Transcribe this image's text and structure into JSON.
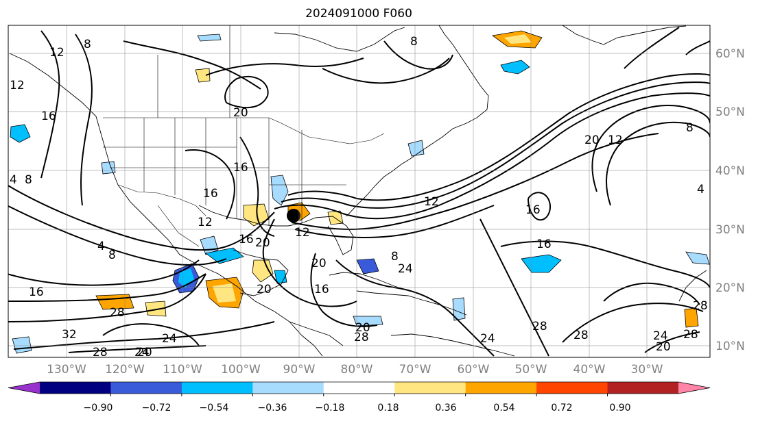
{
  "title": "2024091000 F060",
  "map": {
    "projection": "PlateCarree",
    "lon_range": [
      -142,
      -21
    ],
    "lat_range": [
      7,
      65
    ],
    "gridlines": true,
    "coastlines": true,
    "borders": true,
    "lon_labels": [
      "130°W",
      "120°W",
      "110°W",
      "100°W",
      "90°W",
      "80°W",
      "70°W",
      "60°W",
      "50°W",
      "40°W",
      "30°W"
    ],
    "lat_labels": [
      "10°N",
      "20°N",
      "30°N",
      "40°N",
      "50°N",
      "60°N"
    ],
    "contour_labels": [
      "8",
      "12",
      "16",
      "20",
      "24",
      "28",
      "4",
      "8",
      "12",
      "16",
      "20",
      "24",
      "28",
      "16",
      "16",
      "12",
      "20",
      "8",
      "4",
      "28",
      "24",
      "20",
      "28",
      "24",
      "28",
      "16",
      "20",
      "28",
      "32",
      "28",
      "24",
      "20",
      "16",
      "8",
      "4",
      "12",
      "20",
      "16",
      "12",
      "8",
      "20",
      "16",
      "12",
      "8"
    ],
    "storm_marker": "hurricane-center"
  },
  "colorbar": {
    "colors": [
      "#9932cc",
      "#000080",
      "#3a5bd9",
      "#00bfff",
      "#a8dcff",
      "#ffffff",
      "#ffe680",
      "#ffa500",
      "#ff4500",
      "#b22222",
      "#ff85a8"
    ],
    "tick_labels": [
      "−0.90",
      "−0.72",
      "−0.54",
      "−0.36",
      "−0.18",
      "0.18",
      "0.36",
      "0.54",
      "0.72",
      "0.90"
    ],
    "extend": "both"
  }
}
